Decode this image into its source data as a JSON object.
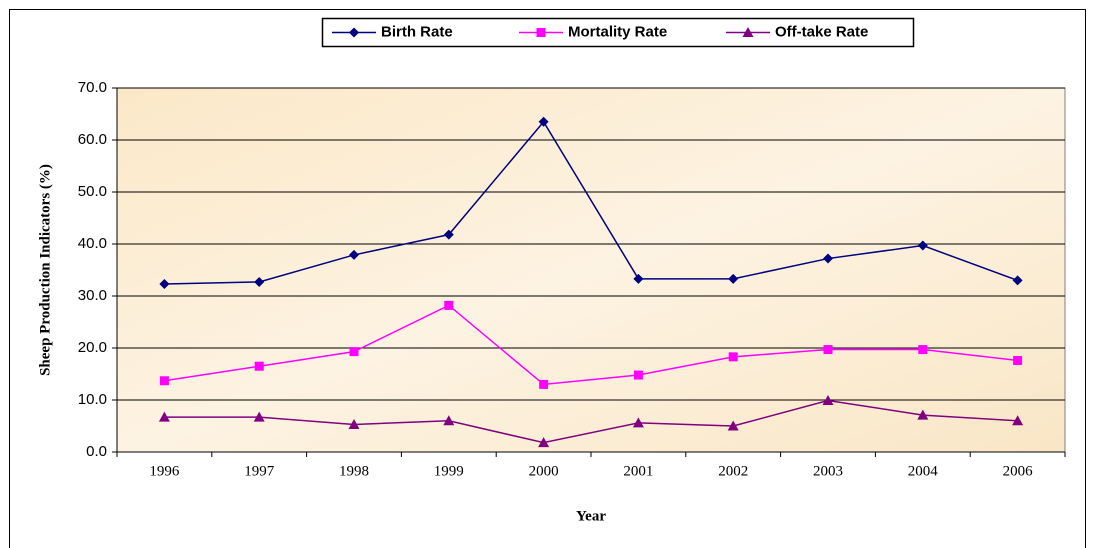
{
  "chart_data": {
    "type": "line",
    "x_label": "Year",
    "y_label": "Sheep Production Indicators (%)",
    "categories": [
      "1996",
      "1997",
      "1998",
      "1999",
      "2000",
      "2001",
      "2002",
      "2003",
      "2004",
      "2006"
    ],
    "series": [
      {
        "name": "Birth Rate",
        "color": "#000080",
        "marker": "diamond",
        "values": [
          32.3,
          32.7,
          37.9,
          41.8,
          63.5,
          33.3,
          33.3,
          37.2,
          39.7,
          33.0
        ]
      },
      {
        "name": "Mortality Rate",
        "color": "#ff00ff",
        "marker": "square",
        "values": [
          13.7,
          16.5,
          19.3,
          28.2,
          13.0,
          14.8,
          18.3,
          19.7,
          19.7,
          17.6
        ]
      },
      {
        "name": "Off-take Rate",
        "color": "#800080",
        "marker": "triangle",
        "values": [
          6.7,
          6.7,
          5.3,
          6.0,
          1.8,
          5.6,
          5.0,
          9.9,
          7.1,
          6.0
        ]
      }
    ],
    "ylim": [
      0,
      70
    ],
    "yticks": [
      {
        "value": 0,
        "label": "0.0"
      },
      {
        "value": 10,
        "label": "10.0"
      },
      {
        "value": 20,
        "label": "20.0"
      },
      {
        "value": 30,
        "label": "30.0"
      },
      {
        "value": 40,
        "label": "40.0"
      },
      {
        "value": 50,
        "label": "50.0"
      },
      {
        "value": 60,
        "label": "60.0"
      },
      {
        "value": 70,
        "label": "70.0"
      }
    ],
    "grid": true,
    "legend": "top"
  }
}
